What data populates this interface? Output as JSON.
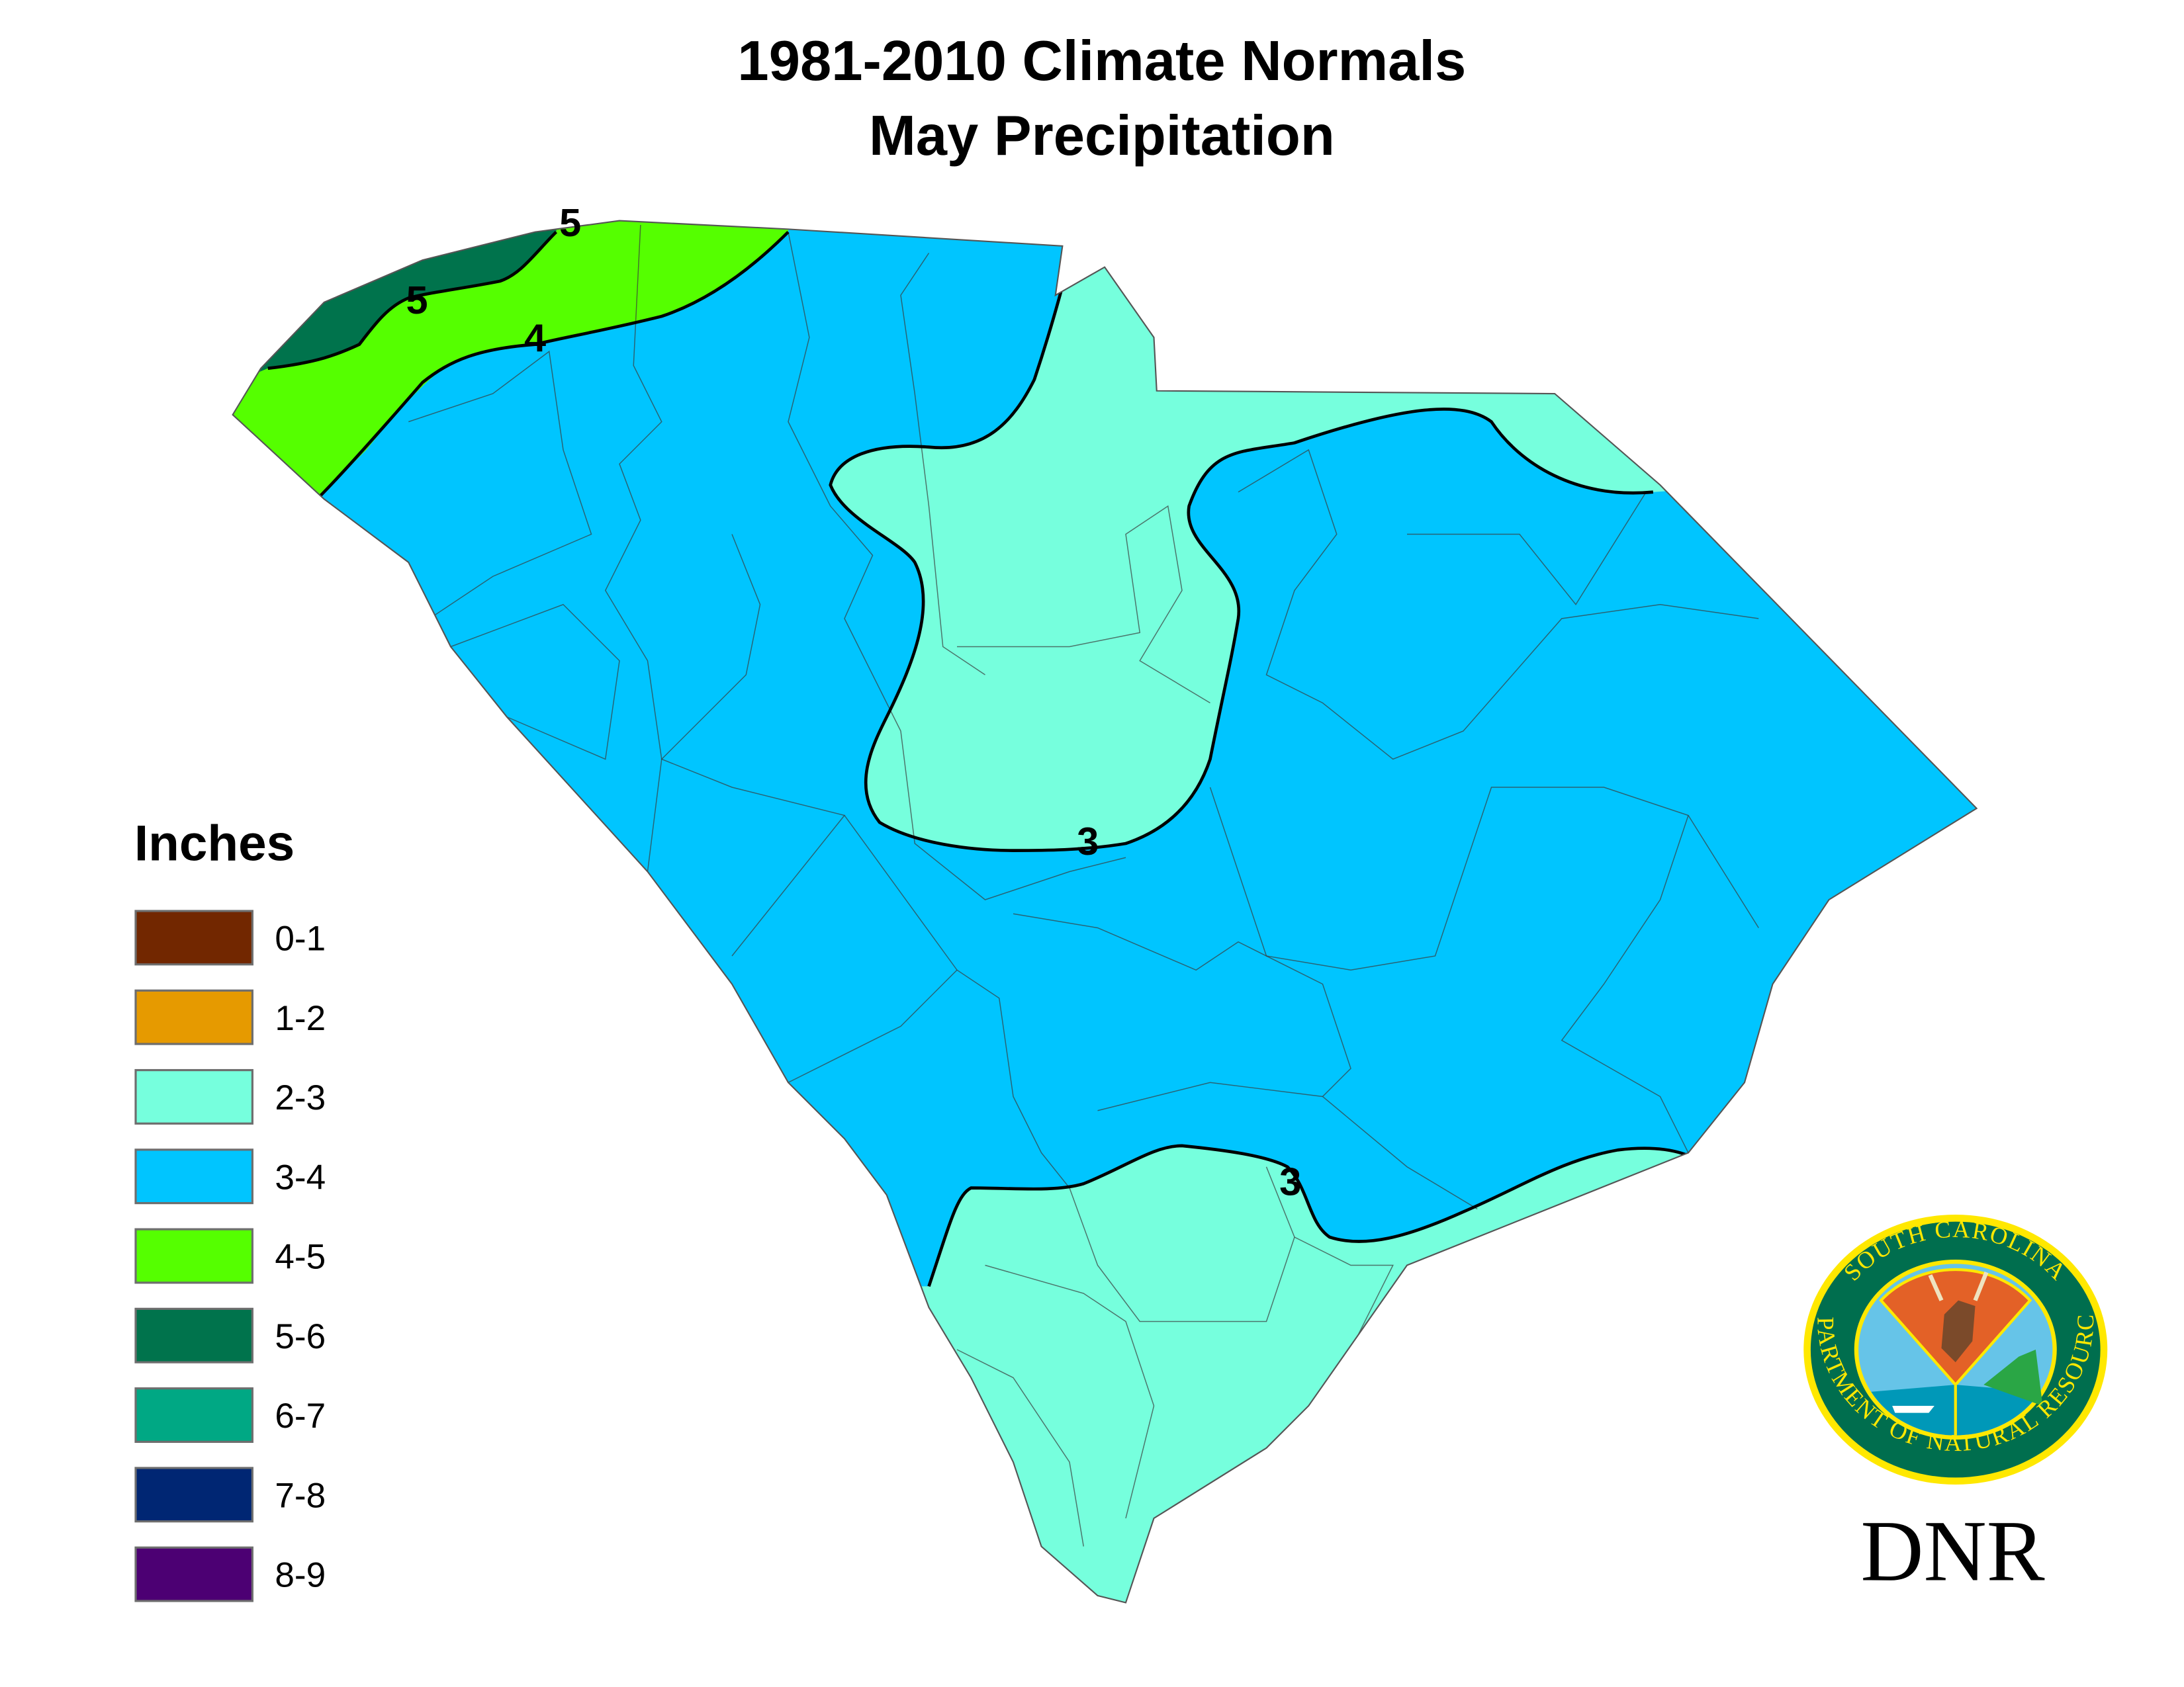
{
  "title": {
    "line1": "1981-2010 Climate Normals",
    "line2": "May Precipitation"
  },
  "legend": {
    "title": "Inches",
    "items": [
      {
        "label": "0-1",
        "color": "#722700"
      },
      {
        "label": "1-2",
        "color": "#E69A00"
      },
      {
        "label": "2-3",
        "color": "#76FFDD"
      },
      {
        "label": "3-4",
        "color": "#00C5FF"
      },
      {
        "label": "4-5",
        "color": "#55FF00"
      },
      {
        "label": "5-6",
        "color": "#00734C"
      },
      {
        "label": "6-7",
        "color": "#00A884"
      },
      {
        "label": "7-8",
        "color": "#002673"
      },
      {
        "label": "8-9",
        "color": "#4C0073"
      }
    ]
  },
  "contour_labels": [
    "5",
    "5",
    "4",
    "3",
    "3"
  ],
  "logo": {
    "top_text": "SOUTH CAROLINA",
    "bottom_text": "DEPARTMENT OF NATURAL RESOURCES",
    "wordmark": "DNR",
    "green": "#006E4E",
    "yellow": "#FFE800"
  }
}
